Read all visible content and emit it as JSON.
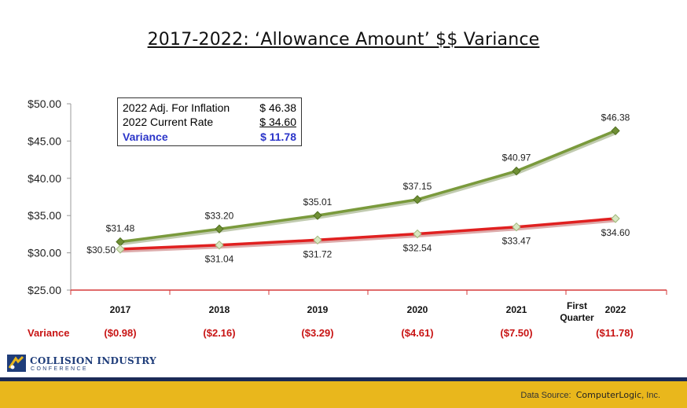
{
  "title": "2017-2022:  ‘Allowance Amount’ $$ Variance",
  "legend_box": {
    "rows": [
      {
        "label": "2022 Adj. For Inflation",
        "value": "$ 46.38"
      },
      {
        "label": "2022 Current Rate",
        "value": "$ 34.60"
      },
      {
        "label": "Variance",
        "value": "$ 11.78"
      }
    ]
  },
  "chart_data": {
    "type": "line",
    "categories": [
      "2017",
      "2018",
      "2019",
      "2020",
      "2021",
      "2022"
    ],
    "category_note": "First Quarter",
    "ylim": [
      25,
      50
    ],
    "yticks": [
      "$25.00",
      "$30.00",
      "$35.00",
      "$40.00",
      "$45.00",
      "$50.00"
    ],
    "ytick_values": [
      25,
      30,
      35,
      40,
      45,
      50
    ],
    "series": [
      {
        "values": [
          31.48,
          33.2,
          35.01,
          37.15,
          40.97,
          46.38
        ],
        "labels": [
          "$31.48",
          "$33.20",
          "$35.01",
          "$37.15",
          "$40.97",
          "$46.38"
        ],
        "color": "#7a9a3c"
      },
      {
        "values": [
          30.5,
          31.04,
          31.72,
          32.54,
          33.47,
          34.6
        ],
        "labels": [
          "$30.50",
          "$31.04",
          "$31.72",
          "$32.54",
          "$33.47",
          "$34.60"
        ],
        "color": "#e02020"
      }
    ],
    "variance_label": "Variance",
    "variance": [
      "($0.98)",
      "($2.16)",
      "($3.29)",
      "($4.61)",
      "($7.50)",
      "($11.78)"
    ]
  },
  "logo": {
    "line1": "COLLISION INDUSTRY",
    "line2": "CONFERENCE"
  },
  "footer": {
    "prefix": "Data Source:",
    "company": "ComputerLogic",
    "suffix": ", Inc."
  }
}
